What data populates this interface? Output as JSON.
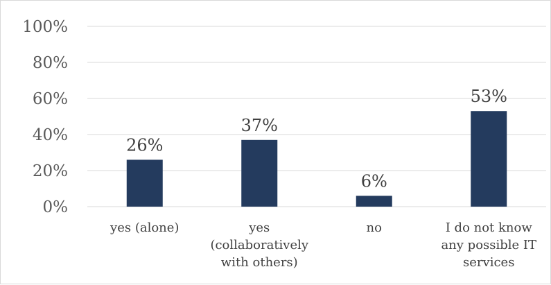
{
  "chart_data": {
    "type": "bar",
    "categories": [
      [
        "yes (alone)"
      ],
      [
        "yes",
        "(collaboratively",
        "with others)"
      ],
      [
        "no"
      ],
      [
        "I do not know",
        "any possible IT",
        "services"
      ]
    ],
    "values": [
      26,
      37,
      6,
      53
    ],
    "data_labels": [
      "26%",
      "37%",
      "6%",
      "53%"
    ],
    "yticks": [
      0,
      20,
      40,
      60,
      80,
      100
    ],
    "ytick_labels": [
      "0%",
      "20%",
      "40%",
      "60%",
      "80%",
      "100%"
    ],
    "ylim": [
      0,
      100
    ],
    "title": "",
    "xlabel": "",
    "ylabel": "",
    "grid": true,
    "legend": "none",
    "bar_color": "#243b5e",
    "grid_color": "#d9d9d9"
  }
}
